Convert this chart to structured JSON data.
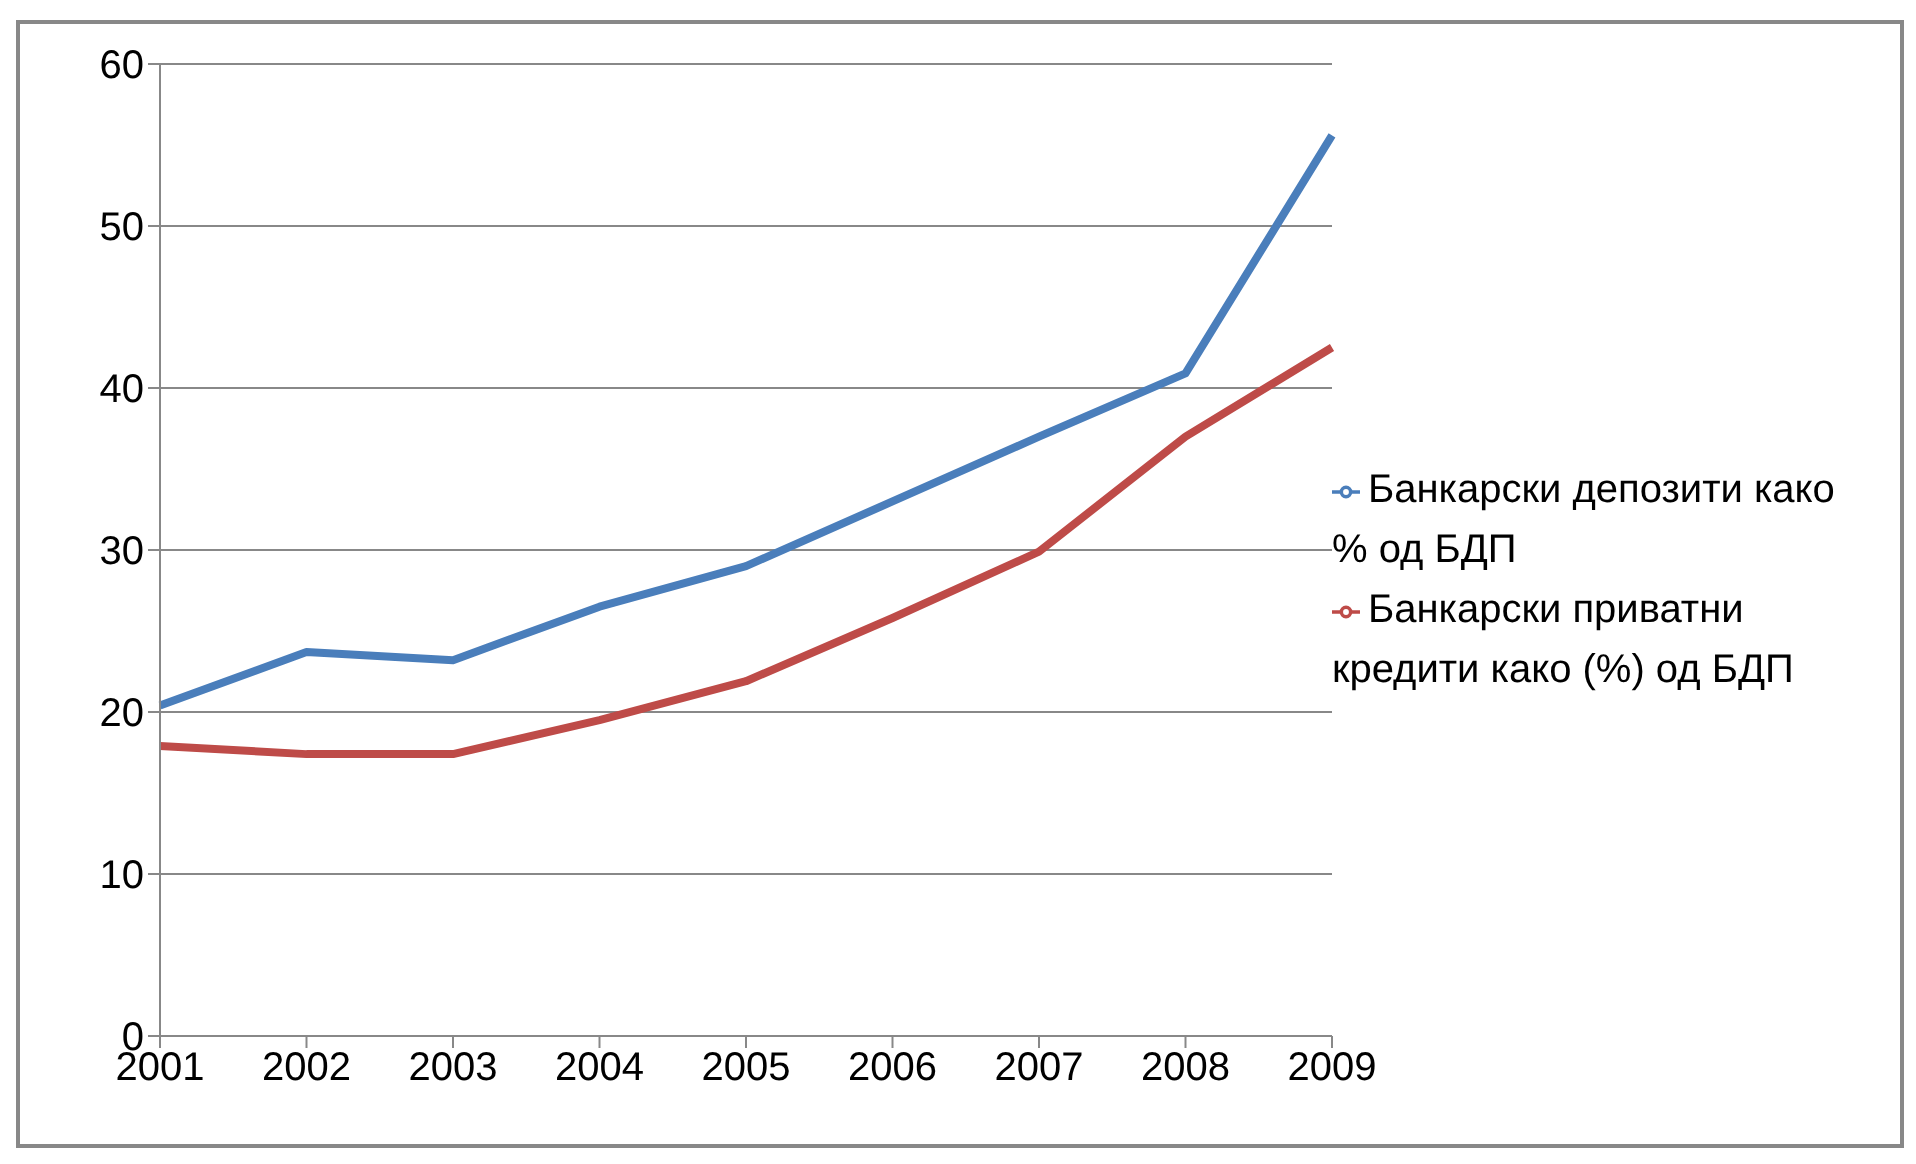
{
  "chart_data": {
    "type": "line",
    "categories": [
      "2001",
      "2002",
      "2003",
      "2004",
      "2005",
      "2006",
      "2007",
      "2008",
      "2009"
    ],
    "series": [
      {
        "name": "Банкарски депозити како % од БДП",
        "color": "#4a7ebb",
        "values": [
          20.4,
          23.7,
          23.2,
          26.5,
          29,
          33,
          37,
          40.9,
          55.6
        ]
      },
      {
        "name": "Банкарски приватни кредити како (%) од БДП",
        "color": "#be4b48",
        "values": [
          17.9,
          17.4,
          17.4,
          19.5,
          21.9,
          25.8,
          29.9,
          37,
          42.5
        ]
      }
    ],
    "ylim": [
      0,
      60
    ],
    "yticks": [
      0,
      10,
      20,
      30,
      40,
      50,
      60
    ],
    "grid": "y",
    "legend": "right",
    "marker": "none",
    "line_style": "solid"
  }
}
